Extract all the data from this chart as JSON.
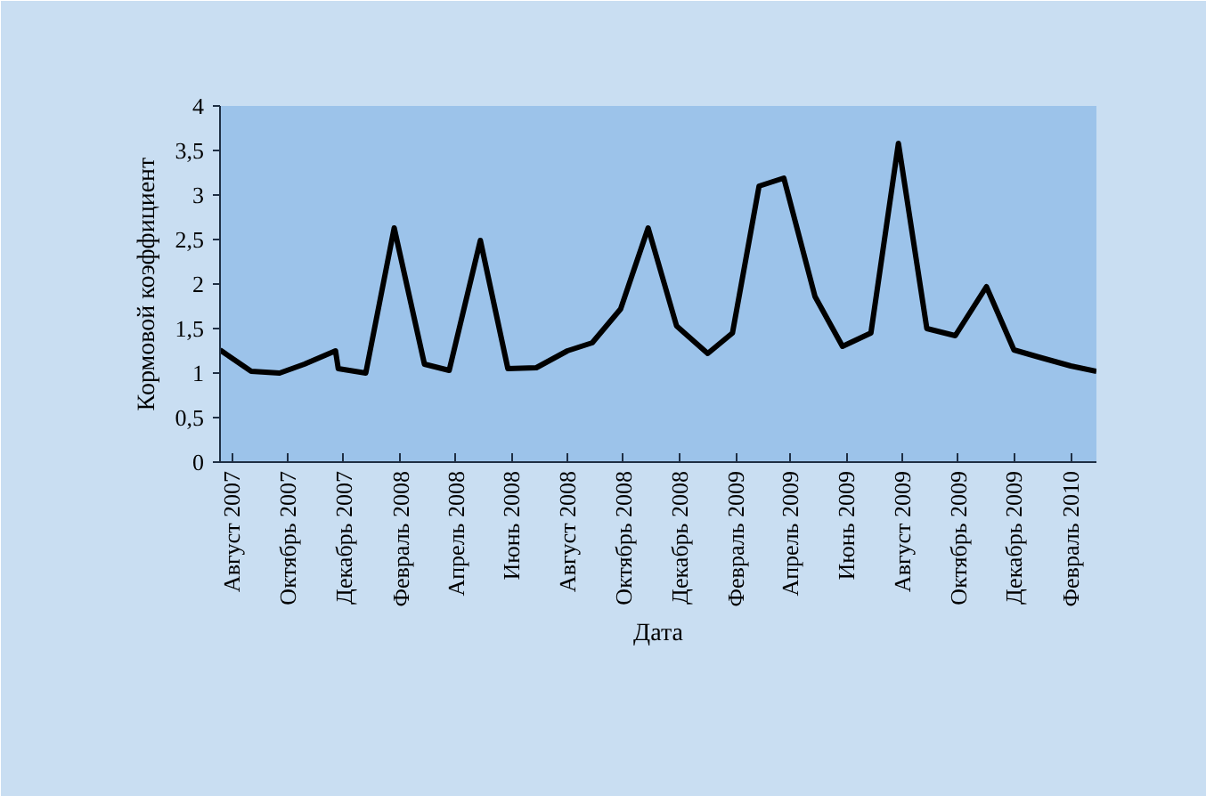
{
  "chart_data": {
    "type": "line",
    "xlabel": "Дата",
    "ylabel": "Кормовой коэффициент",
    "x": [
      "2007-07-19",
      "2007-08-22",
      "2007-09-22",
      "2007-10-19",
      "2007-11-22",
      "2007-11-25",
      "2007-12-25",
      "2008-01-25",
      "2008-02-27",
      "2008-03-25",
      "2008-04-28",
      "2008-05-28",
      "2008-06-28",
      "2008-08-01",
      "2008-08-28",
      "2008-09-28",
      "2008-10-28",
      "2008-11-28",
      "2009-01-01",
      "2009-01-28",
      "2009-02-26",
      "2009-03-25",
      "2009-04-28",
      "2009-05-28",
      "2009-06-28",
      "2009-07-28",
      "2009-08-28",
      "2009-09-28",
      "2009-11-01",
      "2009-12-01",
      "2009-12-28",
      "2010-02-01",
      "2010-03-01"
    ],
    "series": [
      {
        "color": "#000000",
        "values": [
          1.26,
          1.02,
          1.0,
          1.1,
          1.25,
          1.05,
          1.0,
          2.63,
          1.1,
          1.03,
          2.49,
          1.05,
          1.06,
          1.25,
          1.34,
          1.72,
          2.63,
          1.53,
          1.22,
          1.45,
          3.1,
          3.19,
          1.86,
          1.3,
          1.45,
          3.58,
          1.5,
          1.42,
          1.97,
          1.26,
          1.18,
          1.08,
          1.02
        ]
      }
    ],
    "xlim": [
      "2007-07-19",
      "2010-03-01"
    ],
    "xticks": [
      {
        "value": "2007-08",
        "label": "Август 2007"
      },
      {
        "value": "2007-10",
        "label": "Октябрь 2007"
      },
      {
        "value": "2007-12",
        "label": "Декабрь 2007"
      },
      {
        "value": "2008-02",
        "label": "Февраль 2008"
      },
      {
        "value": "2008-04",
        "label": "Апрель 2008"
      },
      {
        "value": "2008-06",
        "label": "Июнь 2008"
      },
      {
        "value": "2008-08",
        "label": "Август 2008"
      },
      {
        "value": "2008-10",
        "label": "Октябрь 2008"
      },
      {
        "value": "2008-12",
        "label": "Декабрь 2008"
      },
      {
        "value": "2009-02",
        "label": "Февраль 2009"
      },
      {
        "value": "2009-04",
        "label": "Апрель 2009"
      },
      {
        "value": "2009-06",
        "label": "Июнь 2009"
      },
      {
        "value": "2009-08",
        "label": "Август 2009"
      },
      {
        "value": "2009-10",
        "label": "Октябрь 2009"
      },
      {
        "value": "2009-12",
        "label": "Декабрь 2009"
      },
      {
        "value": "2010-02",
        "label": "Февраль 2010"
      }
    ],
    "ylim": [
      0,
      4
    ],
    "yticks": [
      0,
      {
        "value": 0.5,
        "label": "0,5"
      },
      1,
      {
        "value": 1.5,
        "label": "1,5"
      },
      2,
      {
        "value": 2.5,
        "label": "2,5"
      },
      3,
      {
        "value": 3.5,
        "label": "3,5"
      },
      4
    ],
    "grid": false,
    "marker": "none",
    "line_style": "solid"
  }
}
